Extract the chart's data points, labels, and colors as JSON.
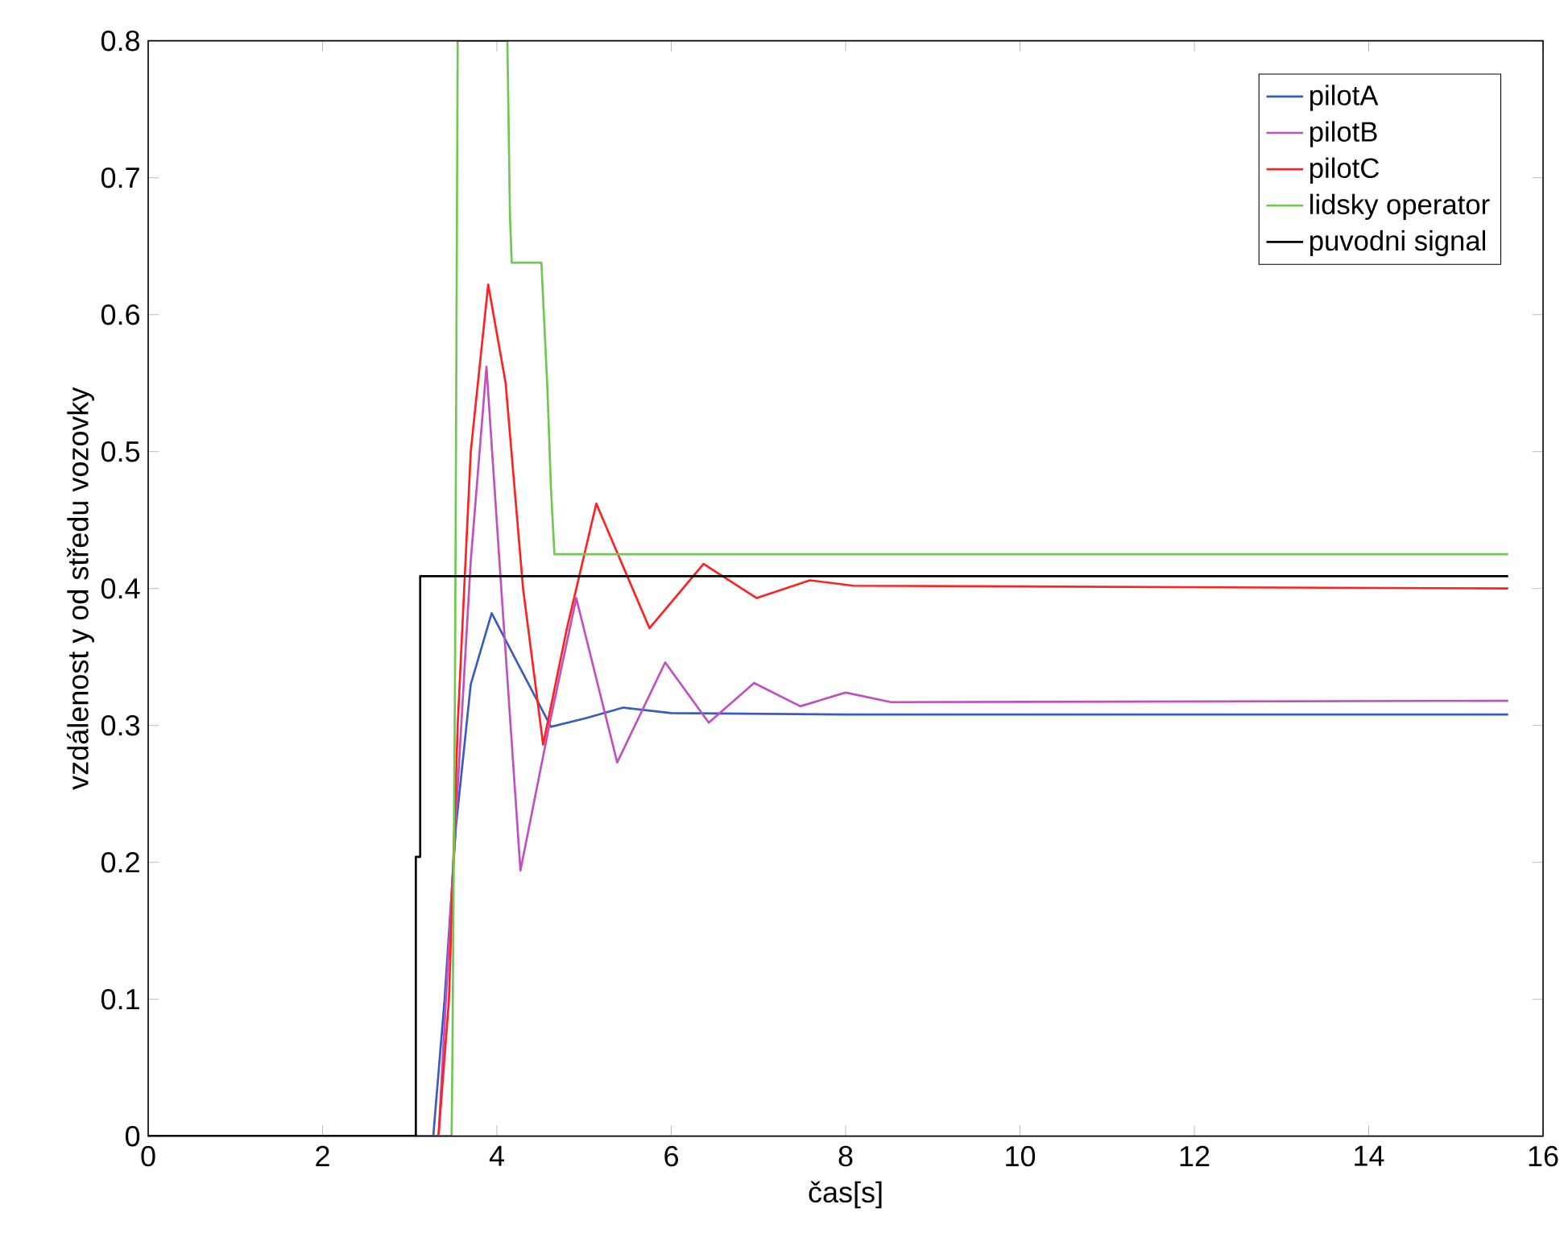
{
  "chart_data": {
    "type": "line",
    "xlabel": "čas[s]",
    "ylabel": "vzdálenost y od středu vozovky",
    "xlim": [
      0,
      16
    ],
    "ylim": [
      0,
      0.8
    ],
    "xticks": [
      0,
      2,
      4,
      6,
      8,
      10,
      12,
      14,
      16
    ],
    "yticks": [
      0,
      0.1,
      0.2,
      0.3,
      0.4,
      0.5,
      0.6,
      0.7,
      0.8
    ],
    "legend": "top right",
    "grid": false,
    "marker": "none",
    "line_style": "solid",
    "series": [
      {
        "name": "pilotA",
        "color": "#3a5bbf",
        "x": [
          0,
          3.27,
          3.4,
          3.53,
          3.7,
          3.94,
          4.2,
          4.62,
          5.0,
          5.45,
          6.0,
          8.0,
          15.6
        ],
        "values": [
          0,
          0,
          0.1,
          0.226,
          0.33,
          0.382,
          0.35,
          0.299,
          0.305,
          0.313,
          0.309,
          0.308,
          0.308
        ]
      },
      {
        "name": "pilotB",
        "color": "#c050c0",
        "x": [
          0,
          3.33,
          3.5,
          3.7,
          3.88,
          4.05,
          4.27,
          4.6,
          4.91,
          5.38,
          5.93,
          6.43,
          6.95,
          7.48,
          8.0,
          8.52,
          15.6
        ],
        "values": [
          0,
          0,
          0.2,
          0.42,
          0.562,
          0.4,
          0.194,
          0.3,
          0.393,
          0.273,
          0.346,
          0.302,
          0.331,
          0.314,
          0.324,
          0.317,
          0.318
        ]
      },
      {
        "name": "pilotC",
        "color": "#ff2020",
        "x": [
          0,
          3.33,
          3.45,
          3.55,
          3.7,
          3.9,
          4.1,
          4.3,
          4.53,
          4.8,
          5.14,
          5.75,
          6.37,
          6.98,
          7.59,
          8.09,
          15.6
        ],
        "values": [
          0,
          0,
          0.1,
          0.3,
          0.5,
          0.622,
          0.55,
          0.4,
          0.286,
          0.37,
          0.462,
          0.371,
          0.418,
          0.393,
          0.406,
          0.402,
          0.4
        ]
      },
      {
        "name": "lidsky operator",
        "color": "#70c850",
        "x": [
          0,
          3.48,
          3.49,
          3.52,
          3.55,
          4.12,
          4.15,
          4.17,
          4.51,
          4.58,
          4.62,
          4.66,
          15.6
        ],
        "values": [
          0,
          0,
          0.06,
          0.34,
          0.8,
          0.8,
          0.672,
          0.638,
          0.638,
          0.545,
          0.473,
          0.425,
          0.425
        ]
      },
      {
        "name": "puvodni signal",
        "color": "#000000",
        "x": [
          0,
          3.07,
          3.07,
          3.12,
          3.12,
          15.6
        ],
        "values": [
          0,
          0,
          0.204,
          0.204,
          0.409,
          0.409
        ]
      }
    ]
  }
}
